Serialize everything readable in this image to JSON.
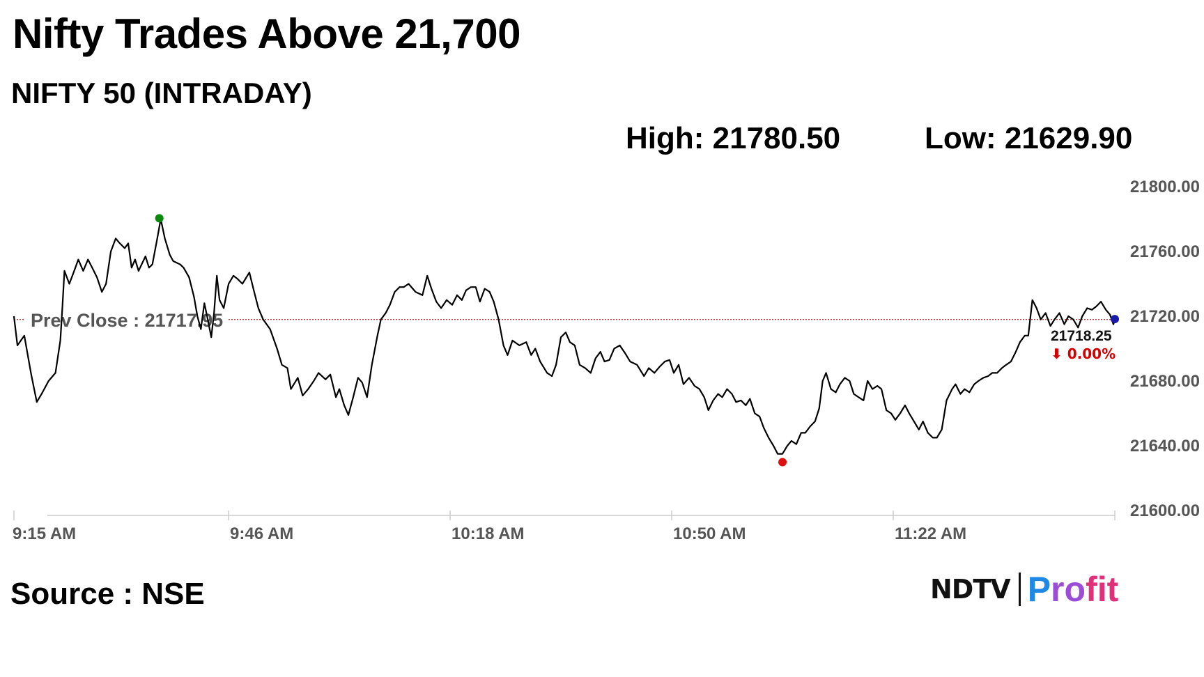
{
  "title": "Nifty Trades Above 21,700",
  "subtitle": "NIFTY 50 (INTRADAY)",
  "stats": {
    "high": "High: 21780.50",
    "low": "Low: 21629.90"
  },
  "source": "Source : NSE",
  "logo": {
    "left": "NDTV",
    "right_parts": [
      "P",
      "ro",
      "fit"
    ]
  },
  "colors": {
    "line": "#000000",
    "high_dot": "#0a8a0a",
    "low_dot": "#e01010",
    "last_dot": "#1a1aa8",
    "prev_close": "#b22222",
    "change": "#d40000"
  },
  "chart_data": {
    "type": "line",
    "y_ticks": [
      "21800.00",
      "21760.00",
      "21720.00",
      "21680.00",
      "21640.00",
      "21600.00"
    ],
    "ylim": [
      21600,
      21800
    ],
    "x_ticks": [
      "9:15 AM",
      "9:46 AM",
      "10:18 AM",
      "10:50 AM",
      "11:22 AM"
    ],
    "x_tick_minutes": [
      0,
      31,
      63,
      95,
      127
    ],
    "x_range_minutes": [
      0,
      159
    ],
    "prev_close": {
      "value": 21717.95,
      "label": "Prev Close : 21717.95"
    },
    "high": {
      "minute": 21,
      "value": 21780.5
    },
    "low": {
      "minute": 111,
      "value": 21629.9
    },
    "last": {
      "minute": 159,
      "value": 21718.25,
      "label": "21718.25",
      "change": "⬇ 0.00%"
    },
    "series": [
      {
        "points": [
          [
            0,
            21720
          ],
          [
            0.5,
            21702
          ],
          [
            1.5,
            21708
          ],
          [
            2.5,
            21684
          ],
          [
            3.3,
            21667
          ],
          [
            4,
            21672
          ],
          [
            5,
            21680
          ],
          [
            6,
            21685
          ],
          [
            6.7,
            21705
          ],
          [
            7,
            21726
          ],
          [
            7.3,
            21748
          ],
          [
            8,
            21740
          ],
          [
            8.7,
            21748
          ],
          [
            9.3,
            21755
          ],
          [
            10,
            21748
          ],
          [
            10.7,
            21755
          ],
          [
            11.3,
            21750
          ],
          [
            12,
            21744
          ],
          [
            12.7,
            21735
          ],
          [
            13.3,
            21740
          ],
          [
            14,
            21760
          ],
          [
            14.7,
            21768
          ],
          [
            15.3,
            21765
          ],
          [
            16,
            21762
          ],
          [
            16.5,
            21765
          ],
          [
            17,
            21750
          ],
          [
            17.5,
            21755
          ],
          [
            18,
            21748
          ],
          [
            19,
            21757
          ],
          [
            19.5,
            21750
          ],
          [
            20,
            21752
          ],
          [
            20.7,
            21768
          ],
          [
            21.2,
            21780
          ],
          [
            21.8,
            21768
          ],
          [
            22.5,
            21758
          ],
          [
            23,
            21754
          ],
          [
            24,
            21752
          ],
          [
            24.5,
            21750
          ],
          [
            25.3,
            21744
          ],
          [
            26,
            21732
          ],
          [
            26.5,
            21720
          ],
          [
            27,
            21712
          ],
          [
            27.5,
            21728
          ],
          [
            28,
            21718
          ],
          [
            28.5,
            21707
          ],
          [
            28.9,
            21722
          ],
          [
            29.3,
            21745
          ],
          [
            29.7,
            21730
          ],
          [
            30.3,
            21725
          ],
          [
            31,
            21740
          ],
          [
            31.7,
            21745
          ],
          [
            32.3,
            21743
          ],
          [
            33,
            21740
          ],
          [
            34,
            21747
          ],
          [
            34.7,
            21735
          ],
          [
            35.3,
            21725
          ],
          [
            36,
            21718
          ],
          [
            37,
            21712
          ],
          [
            38,
            21700
          ],
          [
            38.7,
            21690
          ],
          [
            39.5,
            21688
          ],
          [
            40,
            21675
          ],
          [
            41,
            21682
          ],
          [
            41.7,
            21671
          ],
          [
            42.5,
            21675
          ],
          [
            43.3,
            21680
          ],
          [
            44,
            21685
          ],
          [
            45,
            21681
          ],
          [
            45.7,
            21684
          ],
          [
            46.5,
            21670
          ],
          [
            47,
            21675
          ],
          [
            47.7,
            21665
          ],
          [
            48.3,
            21659
          ],
          [
            49,
            21670
          ],
          [
            49.7,
            21682
          ],
          [
            50.3,
            21679
          ],
          [
            51,
            21670
          ],
          [
            51.7,
            21690
          ],
          [
            52.5,
            21708
          ],
          [
            53,
            21718
          ],
          [
            53.7,
            21722
          ],
          [
            54.3,
            21727
          ],
          [
            55,
            21735
          ],
          [
            55.7,
            21738
          ],
          [
            56.3,
            21738
          ],
          [
            57,
            21740
          ],
          [
            58,
            21735
          ],
          [
            59,
            21733
          ],
          [
            59.7,
            21745
          ],
          [
            60.3,
            21737
          ],
          [
            61,
            21729
          ],
          [
            61.7,
            21725
          ],
          [
            62.5,
            21730
          ],
          [
            63.3,
            21727
          ],
          [
            64,
            21733
          ],
          [
            64.7,
            21730
          ],
          [
            65.3,
            21736
          ],
          [
            66,
            21738
          ],
          [
            66.7,
            21738
          ],
          [
            67.3,
            21729
          ],
          [
            68,
            21737
          ],
          [
            68.7,
            21735
          ],
          [
            69.3,
            21729
          ],
          [
            70,
            21718
          ],
          [
            70.7,
            21702
          ],
          [
            71.3,
            21696
          ],
          [
            72,
            21705
          ],
          [
            73,
            21702
          ],
          [
            74,
            21704
          ],
          [
            74.7,
            21696
          ],
          [
            75.3,
            21700
          ],
          [
            76,
            21692
          ],
          [
            77,
            21685
          ],
          [
            77.7,
            21683
          ],
          [
            78.3,
            21690
          ],
          [
            79,
            21707
          ],
          [
            79.7,
            21710
          ],
          [
            80.3,
            21704
          ],
          [
            81,
            21702
          ],
          [
            81.7,
            21690
          ],
          [
            82.5,
            21688
          ],
          [
            83.3,
            21685
          ],
          [
            84,
            21694
          ],
          [
            84.7,
            21698
          ],
          [
            85.3,
            21692
          ],
          [
            86,
            21693
          ],
          [
            86.7,
            21700
          ],
          [
            87.5,
            21702
          ],
          [
            88.3,
            21697
          ],
          [
            89,
            21692
          ],
          [
            90,
            21690
          ],
          [
            91,
            21683
          ],
          [
            91.7,
            21688
          ],
          [
            92.5,
            21685
          ],
          [
            93.3,
            21689
          ],
          [
            94,
            21692
          ],
          [
            94.7,
            21693
          ],
          [
            95.3,
            21685
          ],
          [
            96,
            21690
          ],
          [
            96.7,
            21678
          ],
          [
            97.5,
            21682
          ],
          [
            98.3,
            21677
          ],
          [
            99,
            21675
          ],
          [
            99.7,
            21670
          ],
          [
            100.3,
            21662
          ],
          [
            101,
            21668
          ],
          [
            101.7,
            21672
          ],
          [
            102.3,
            21670
          ],
          [
            103,
            21675
          ],
          [
            103.7,
            21672
          ],
          [
            104.3,
            21667
          ],
          [
            105,
            21668
          ],
          [
            105.7,
            21665
          ],
          [
            106.3,
            21669
          ],
          [
            107,
            21660
          ],
          [
            107.7,
            21658
          ],
          [
            108.3,
            21651
          ],
          [
            109,
            21645
          ],
          [
            109.7,
            21640
          ],
          [
            110.3,
            21635
          ],
          [
            111,
            21635
          ],
          [
            111.7,
            21640
          ],
          [
            112.3,
            21643
          ],
          [
            113,
            21641
          ],
          [
            113.7,
            21648
          ],
          [
            114.3,
            21648
          ],
          [
            115,
            21652
          ],
          [
            115.7,
            21655
          ],
          [
            116.3,
            21663
          ],
          [
            116.8,
            21680
          ],
          [
            117.3,
            21685
          ],
          [
            118,
            21675
          ],
          [
            118.7,
            21673
          ],
          [
            119.3,
            21678
          ],
          [
            120,
            21682
          ],
          [
            120.7,
            21680
          ],
          [
            121.3,
            21672
          ],
          [
            122,
            21670
          ],
          [
            122.7,
            21668
          ],
          [
            123.3,
            21680
          ],
          [
            124,
            21675
          ],
          [
            124.7,
            21677
          ],
          [
            125.3,
            21675
          ],
          [
            126,
            21662
          ],
          [
            126.7,
            21660
          ],
          [
            127.3,
            21656
          ],
          [
            128,
            21660
          ],
          [
            128.7,
            21665
          ],
          [
            129.3,
            21660
          ],
          [
            130,
            21655
          ],
          [
            130.7,
            21650
          ],
          [
            131.3,
            21655
          ],
          [
            132,
            21648
          ],
          [
            132.7,
            21645
          ],
          [
            133.3,
            21645
          ],
          [
            134,
            21650
          ],
          [
            134.7,
            21668
          ],
          [
            135.5,
            21675
          ],
          [
            136,
            21678
          ],
          [
            136.7,
            21672
          ],
          [
            137.3,
            21675
          ],
          [
            138,
            21673
          ],
          [
            138.7,
            21678
          ],
          [
            139.3,
            21680
          ],
          [
            140,
            21682
          ],
          [
            140.7,
            21683
          ],
          [
            141.3,
            21685
          ],
          [
            142,
            21685
          ],
          [
            142.7,
            21688
          ],
          [
            143.3,
            21690
          ],
          [
            144,
            21692
          ],
          [
            144.7,
            21698
          ],
          [
            145.3,
            21704
          ],
          [
            146,
            21708
          ],
          [
            146.5,
            21708
          ],
          [
            147.1,
            21730
          ],
          [
            147.7,
            21725
          ],
          [
            148.3,
            21718
          ],
          [
            149,
            21722
          ],
          [
            149.7,
            21714
          ],
          [
            150.3,
            21718
          ],
          [
            151,
            21722
          ],
          [
            151.7,
            21715
          ],
          [
            152.3,
            21720
          ],
          [
            153,
            21718
          ],
          [
            153.7,
            21713
          ],
          [
            154.3,
            21720
          ],
          [
            155,
            21725
          ],
          [
            155.7,
            21724
          ],
          [
            156.3,
            21726
          ],
          [
            157,
            21729
          ],
          [
            157.7,
            21724
          ],
          [
            158.3,
            21721
          ],
          [
            158.8,
            21715
          ],
          [
            159,
            21718.25
          ]
        ]
      }
    ]
  }
}
